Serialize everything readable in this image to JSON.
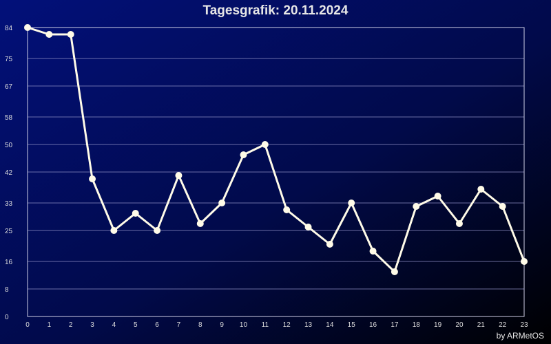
{
  "chart_data": {
    "type": "line",
    "title": "Tagesgrafik: 20.11.2024",
    "credit": "by ARMetOS",
    "x": [
      0,
      1,
      2,
      3,
      4,
      5,
      6,
      7,
      8,
      9,
      10,
      11,
      12,
      13,
      14,
      15,
      16,
      17,
      18,
      19,
      20,
      21,
      22,
      23
    ],
    "y": [
      84,
      82,
      82,
      40,
      25,
      30,
      25,
      41,
      27,
      33,
      47,
      50,
      31,
      26,
      21,
      33,
      19,
      13,
      32,
      35,
      27,
      37,
      32,
      16
    ],
    "ylim": [
      0,
      84
    ],
    "yticks": [
      0,
      8,
      16,
      25,
      33,
      42,
      50,
      58,
      67,
      75,
      84
    ],
    "xticks": [
      0,
      1,
      2,
      3,
      4,
      5,
      6,
      7,
      8,
      9,
      10,
      11,
      12,
      13,
      14,
      15,
      16,
      17,
      18,
      19,
      20,
      21,
      22,
      23
    ],
    "grid": true,
    "colors": {
      "line": "#fffbe8",
      "grid": "#8e8fc4"
    }
  }
}
